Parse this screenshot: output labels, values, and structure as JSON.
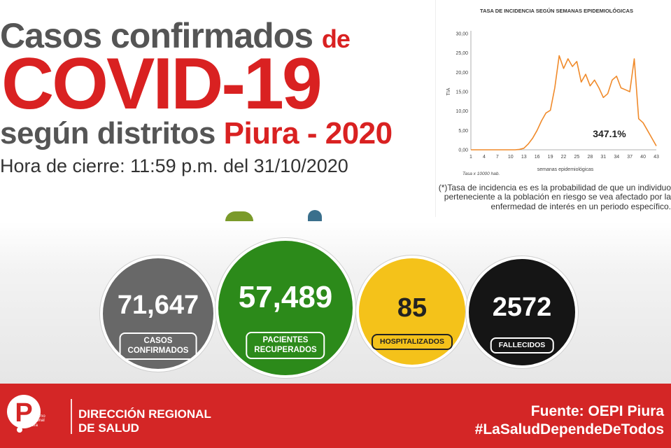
{
  "title": {
    "line1": "Casos confirmados ",
    "line1_de": "de",
    "line2": "COVID-19",
    "line3_gray": "según distritos ",
    "line3_red": "Piura - 2020",
    "line4": "Hora de cierre: 11:59 p.m. del 31/10/2020"
  },
  "colors": {
    "red": "#d92121",
    "gray": "#555555",
    "green": "#2c8a1a",
    "yellow": "#f4c21a",
    "black": "#151515",
    "line": "#f08a2a"
  },
  "chart_data": {
    "type": "line",
    "title": "TASA DE INCIDENCIA SEGÚN SEMANAS EPIDEMIOLÓGICAS",
    "ylabel": "TIA",
    "xlabel": "semanas epidemiológicas",
    "note_left": "Tasa x 10000 hab.",
    "annotation": "347.1%",
    "ylim": [
      0,
      30
    ],
    "yticks": [
      "0,00",
      "5,00",
      "10,00",
      "15,00",
      "20,00",
      "25,00",
      "30,00"
    ],
    "xticks": [
      "1",
      "4",
      "7",
      "10",
      "13",
      "16",
      "19",
      "22",
      "25",
      "28",
      "31",
      "34",
      "37",
      "40",
      "43"
    ],
    "x": [
      1,
      2,
      3,
      4,
      5,
      6,
      7,
      8,
      9,
      10,
      11,
      12,
      13,
      14,
      15,
      16,
      17,
      18,
      19,
      20,
      21,
      22,
      23,
      24,
      25,
      26,
      27,
      28,
      29,
      30,
      31,
      32,
      33,
      34,
      35,
      36,
      37,
      38,
      39,
      40,
      41,
      42,
      43
    ],
    "values": [
      0,
      0,
      0,
      0,
      0,
      0,
      0,
      0,
      0,
      0,
      0,
      0.1,
      0.4,
      1.5,
      3,
      5,
      7.5,
      9.5,
      10.2,
      16,
      24.3,
      21,
      23.5,
      21.5,
      22.8,
      17.5,
      19.5,
      16.5,
      18,
      16,
      13.5,
      14.5,
      18,
      19,
      16,
      15.5,
      15,
      23.5,
      8,
      7,
      5,
      3,
      1
    ]
  },
  "chart_note": "(*)Tasa de incidencia es es la probabilidad de que un individuo perteneciente a la población en riesgo se vea afectado por la enfermedad de interés en un periodo específico.",
  "stats": {
    "confirmed": {
      "value": "71,647",
      "label1": "CASOS",
      "label2": "CONFIRMADOS"
    },
    "recovered": {
      "value": "57,489",
      "label1": "PACIENTES",
      "label2": "RECUPERADOS"
    },
    "hospitalized": {
      "value": "85",
      "label1": "HOSPITALIZADOS"
    },
    "deceased": {
      "value": "2572",
      "label1": "FALLECIDOS"
    }
  },
  "footer": {
    "logo_letter": "P",
    "logo_text1": "Gobierno",
    "logo_text2": "Regional",
    "logo_text3": "Piura",
    "org_line1": "DIRECCIÓN REGIONAL",
    "org_line2": "DE SALUD",
    "source": "Fuente: OEPI Piura",
    "hashtag": "#LaSaludDependeDeTodos"
  }
}
